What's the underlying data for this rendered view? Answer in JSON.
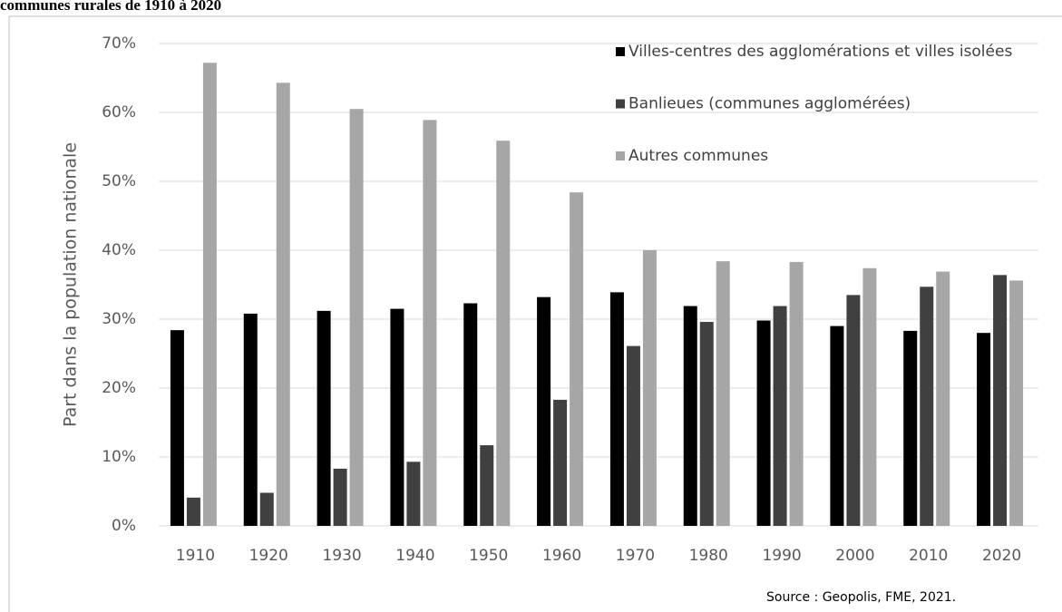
{
  "chart_data": {
    "type": "bar",
    "title": "communes rurales de 1910 à 2020",
    "y_label": "Part dans la population nationale",
    "source": "Source : Geopolis, FME, 2021.",
    "categories": [
      "1910",
      "1920",
      "1930",
      "1940",
      "1950",
      "1960",
      "1970",
      "1980",
      "1990",
      "2000",
      "2010",
      "2020"
    ],
    "series": [
      {
        "name": "Villes-centres des agglomérations et villes isolées",
        "color": "#000000",
        "values": [
          28.4,
          30.8,
          31.2,
          31.5,
          32.3,
          33.2,
          33.9,
          31.9,
          29.8,
          29.0,
          28.3,
          28.0
        ]
      },
      {
        "name": "Banlieues (communes agglomérées)",
        "color": "#404040",
        "values": [
          4.1,
          4.8,
          8.3,
          9.3,
          11.7,
          18.3,
          26.1,
          29.6,
          31.9,
          33.5,
          34.7,
          36.4
        ]
      },
      {
        "name": "Autres communes",
        "color": "#a6a6a6",
        "values": [
          67.2,
          64.3,
          60.5,
          58.9,
          55.9,
          48.4,
          40.0,
          38.4,
          38.3,
          37.4,
          36.9,
          35.6
        ]
      }
    ],
    "ylim": [
      0,
      70
    ],
    "yticks": [
      {
        "value": 0,
        "label": "0%"
      },
      {
        "value": 10,
        "label": "10%"
      },
      {
        "value": 20,
        "label": "20%"
      },
      {
        "value": 30,
        "label": "30%"
      },
      {
        "value": 40,
        "label": "40%"
      },
      {
        "value": 50,
        "label": "50%"
      },
      {
        "value": 60,
        "label": "60%"
      },
      {
        "value": 70,
        "label": "70%"
      }
    ],
    "grid": true,
    "legend": "top-right"
  }
}
